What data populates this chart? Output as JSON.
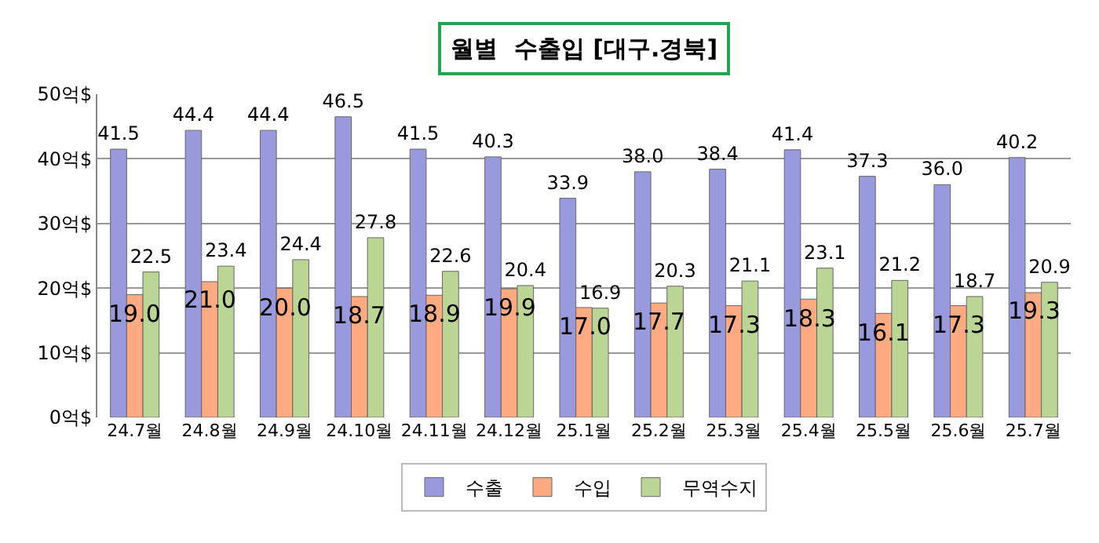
{
  "chart_data": {
    "type": "bar",
    "title": "월별  수출입 [대구.경북]",
    "categories": [
      "24.7월",
      "24.8월",
      "24.9월",
      "24.10월",
      "24.11월",
      "24.12월",
      "25.1월",
      "25.2월",
      "25.3월",
      "25.4월",
      "25.5월",
      "25.6월",
      "25.7월"
    ],
    "series": [
      {
        "name": "수출",
        "color": "#9999dd",
        "values": [
          41.5,
          44.4,
          44.4,
          46.5,
          41.5,
          40.3,
          33.9,
          38.0,
          38.4,
          41.4,
          37.3,
          36.0,
          40.2
        ],
        "value_labels": [
          "41.5",
          "44.4",
          "44.4",
          "46.5",
          "41.5",
          "40.3",
          "33.9",
          "38.0",
          "38.4",
          "41.4",
          "37.3",
          "36.0",
          "40.2"
        ]
      },
      {
        "name": "수입",
        "color": "#ffaa80",
        "values": [
          19.0,
          21.0,
          20.0,
          18.7,
          18.9,
          19.9,
          17.0,
          17.7,
          17.3,
          18.3,
          16.1,
          17.3,
          19.3
        ],
        "value_labels": [
          "19.0",
          "21.0",
          "20.0",
          "18.7",
          "18.9",
          "19.9",
          "17.0",
          "17.7",
          "17.3",
          "18.3",
          "16.1",
          "17.3",
          "19.3"
        ]
      },
      {
        "name": "무역수지",
        "color": "#bbd595",
        "values": [
          22.5,
          23.4,
          24.4,
          27.8,
          22.6,
          20.4,
          16.9,
          20.3,
          21.1,
          23.1,
          21.2,
          18.7,
          20.9
        ],
        "value_labels": [
          "22.5",
          "23.4",
          "24.4",
          "27.8",
          "22.6",
          "20.4",
          "16.9",
          "20.3",
          "21.1",
          "23.1",
          "21.2",
          "18.7",
          "20.9"
        ]
      }
    ],
    "ylim": [
      0,
      50
    ],
    "yticks": [
      {
        "value": 0,
        "label": "0억$"
      },
      {
        "value": 10,
        "label": "10억$"
      },
      {
        "value": 20,
        "label": "20억$"
      },
      {
        "value": 30,
        "label": "30억$"
      },
      {
        "value": 40,
        "label": "40억$"
      },
      {
        "value": 50,
        "label": "50억$"
      }
    ],
    "grid": "y",
    "legend": "bottom"
  }
}
